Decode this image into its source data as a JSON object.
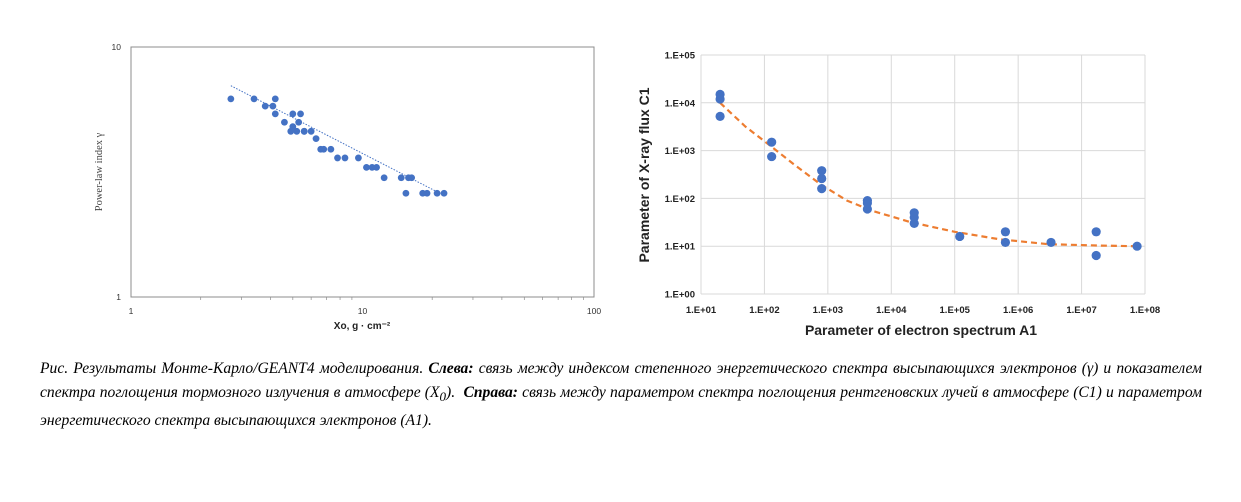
{
  "chart_data": [
    {
      "type": "scatter",
      "title": "",
      "xlabel": "Xo, g · cm⁻²",
      "ylabel": "Power-law index γ",
      "xscale": "log",
      "yscale": "log",
      "xlim": [
        1,
        100
      ],
      "ylim": [
        1,
        10
      ],
      "x_tick_labels": [
        "1",
        "10",
        "100"
      ],
      "y_tick_labels": [
        "1",
        "10"
      ],
      "grid": false,
      "legend": "none",
      "marker_color": "#4472c4",
      "trendline": {
        "style": "dotted",
        "color": "#4472c4",
        "x": [
          2.7,
          22.5
        ],
        "y": [
          7.0,
          2.55
        ]
      },
      "points": {
        "x": [
          2.7,
          3.4,
          3.8,
          4.1,
          4.2,
          4.2,
          4.6,
          4.9,
          5.0,
          5.0,
          5.2,
          5.3,
          5.4,
          5.6,
          5.6,
          6.0,
          6.3,
          6.6,
          6.8,
          7.3,
          7.8,
          8.4,
          9.6,
          10.4,
          11.0,
          11.5,
          12.4,
          14.7,
          15.4,
          15.8,
          16.3,
          18.2,
          19.0,
          21.0,
          22.5
        ],
        "y": [
          6.2,
          6.2,
          5.8,
          5.8,
          5.4,
          6.2,
          5.0,
          4.6,
          5.4,
          4.8,
          4.6,
          5.0,
          5.4,
          4.6,
          4.6,
          4.6,
          4.3,
          3.9,
          3.9,
          3.9,
          3.6,
          3.6,
          3.6,
          3.3,
          3.3,
          3.3,
          3.0,
          3.0,
          2.6,
          3.0,
          3.0,
          2.6,
          2.6,
          2.6,
          2.6
        ]
      }
    },
    {
      "type": "scatter",
      "title": "",
      "xlabel": "Parameter of electron spectrum A1",
      "ylabel": "Parameter of X-ray flux C1",
      "xscale": "log",
      "yscale": "log",
      "xlim": [
        10,
        100000000
      ],
      "ylim": [
        1,
        100000
      ],
      "x_tick_labels": [
        "1.E+01",
        "1.E+02",
        "1.E+03",
        "1.E+04",
        "1.E+05",
        "1.E+06",
        "1.E+07",
        "1.E+08"
      ],
      "y_tick_labels": [
        "1.E+00",
        "1.E+01",
        "1.E+02",
        "1.E+03",
        "1.E+04",
        "1.E+05"
      ],
      "grid": true,
      "legend": "none",
      "marker_color": "#4472c4",
      "fit_curve": {
        "style": "dashed",
        "color": "#ed7d31",
        "type": "power+constant",
        "x": [
          20,
          50,
          130,
          300,
          800,
          2000,
          5000,
          20000,
          100000,
          500000,
          3000000,
          20000000,
          70000000
        ],
        "y": [
          10000,
          3200,
          1200,
          500,
          190,
          90,
          55,
          32,
          20,
          14,
          11,
          10.3,
          10
        ]
      },
      "points": {
        "x": [
          20,
          20,
          20,
          130,
          130,
          800,
          800,
          800,
          4200,
          4200,
          4200,
          23000,
          23000,
          23000,
          120000,
          630000,
          630000,
          3300000,
          17000000,
          17000000,
          75000000
        ],
        "y": [
          15000,
          12000,
          5200,
          1500,
          750,
          380,
          260,
          160,
          90,
          80,
          60,
          50,
          40,
          30,
          16,
          20,
          12,
          12,
          20,
          6.4,
          10
        ]
      }
    }
  ],
  "caption": {
    "lead": "Рис. Результаты Монте-Карло/GEANT4 моделирования.",
    "left_label": "Слева:",
    "left_text_1": "связь между индексом степенного энергетического спектра высыпающихся электронов (γ) и показателем спектра поглощения тормозного излучения в атмосфере (X",
    "left_sub": "0",
    "left_text_2": ").",
    "right_label": "Справа:",
    "right_text": "связь между параметром спектра поглощения рентгеновских лучей в атмосфере (C1) и параметром энергетического спектра высыпающихся электронов (A1)."
  }
}
